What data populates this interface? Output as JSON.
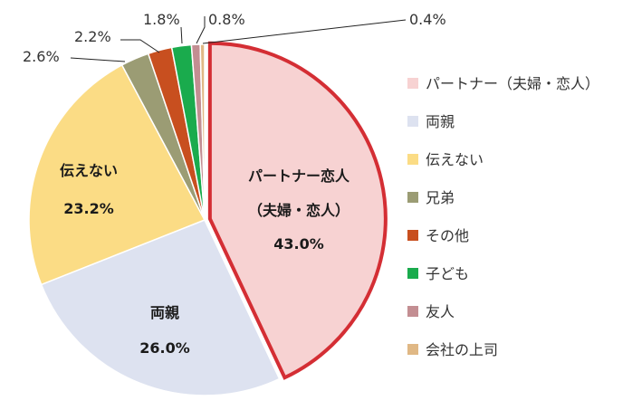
{
  "chart_data": {
    "type": "pie",
    "categories": [
      "パートナー（夫婦・恋人）",
      "両親",
      "伝えない",
      "兄弟",
      "その他",
      "子ども",
      "友人",
      "会社の上司"
    ],
    "values": [
      43.0,
      26.0,
      23.2,
      2.6,
      2.2,
      1.8,
      0.8,
      0.4
    ],
    "colors": [
      "#f7d2d2",
      "#dde2f0",
      "#fbdc85",
      "#9b9c74",
      "#c84f1f",
      "#1aab4d",
      "#c38e92",
      "#e0b885"
    ],
    "highlight_color": "#d42e34",
    "highlighted_slice": 0,
    "slice_labels": {
      "partner": {
        "line1": "パートナー恋人",
        "line2": "（夫婦・恋人）",
        "value": "43.0%"
      },
      "parents": {
        "line1": "両親",
        "value": "26.0%"
      },
      "no_tell": {
        "line1": "伝えない",
        "value": "23.2%"
      }
    },
    "outside_labels": [
      "2.6%",
      "2.2%",
      "1.8%",
      "0.8%",
      "0.4%"
    ],
    "legend_position": "right"
  }
}
